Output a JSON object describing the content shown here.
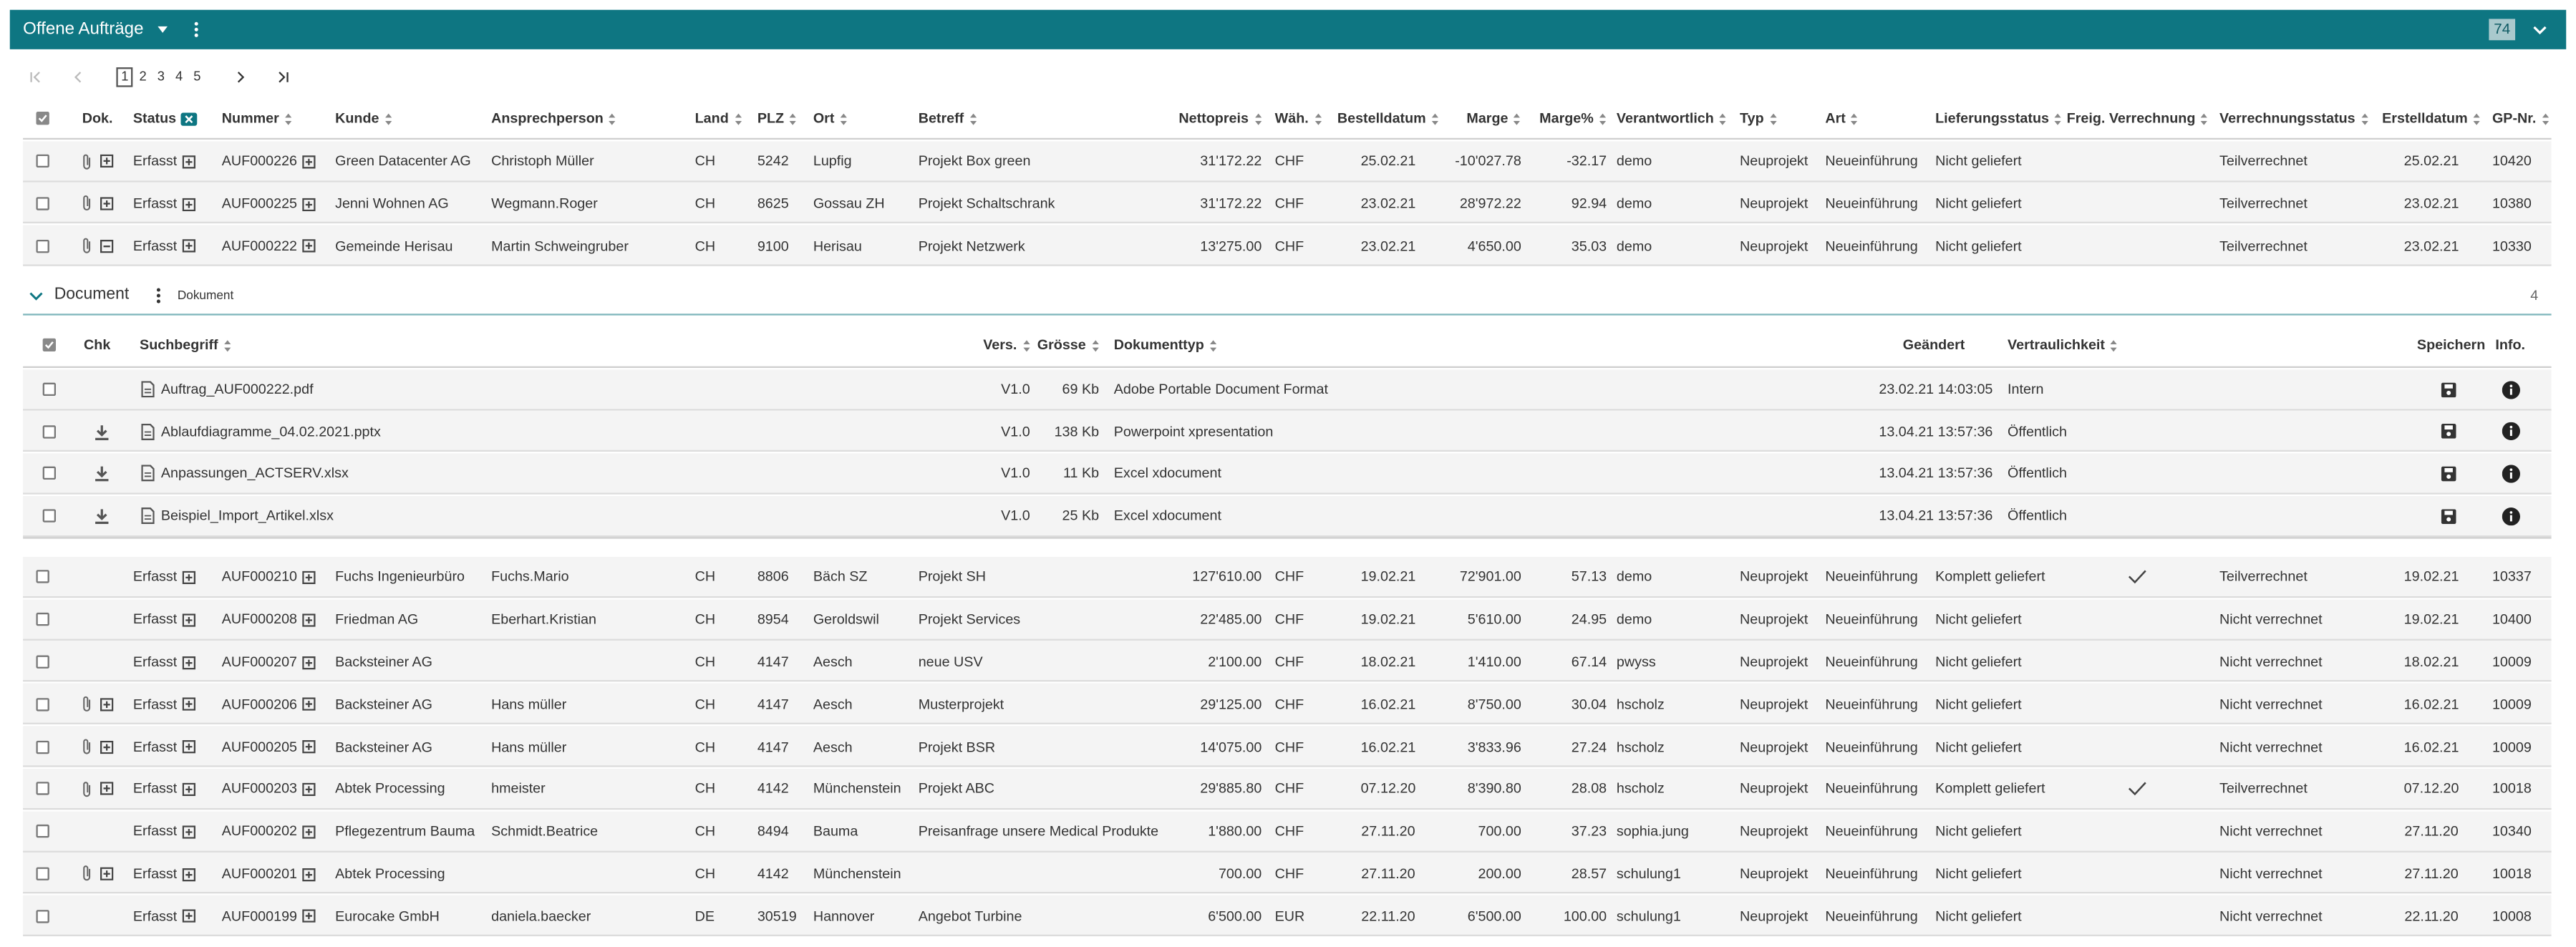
{
  "header": {
    "title": "Offene Aufträge",
    "count": "74"
  },
  "pagination": {
    "pages": [
      "1",
      "2",
      "3",
      "4",
      "5"
    ],
    "current": 0
  },
  "table": {
    "columns": [
      "Dok.",
      "Status",
      "Nummer",
      "Kunde",
      "Ansprechperson",
      "Land",
      "PLZ",
      "Ort",
      "Betreff",
      "Nettopreis",
      "Wäh.",
      "Bestelldatum",
      "Marge",
      "Marge%",
      "Verantwortlich",
      "Typ",
      "Art",
      "Lieferungsstatus",
      "Freig. Verrechnung",
      "Verrechnungsstatus",
      "Erstelldatum",
      "GP-Nr."
    ],
    "rows": [
      {
        "attachments": true,
        "expanded": false,
        "cells": [
          "Erfasst",
          "AUF000226",
          "Green Datacenter AG",
          "Christoph Müller",
          "CH",
          "5242",
          "Lupfig",
          "Projekt Box green",
          "31'172.22",
          "CHF",
          "25.02.21",
          "-10'027.78",
          "-32.17",
          "demo",
          "Neuprojekt",
          "Neueinführung",
          "Nicht geliefert",
          false,
          "Teilverrechnet",
          "25.02.21",
          "10420"
        ]
      },
      {
        "attachments": true,
        "expanded": false,
        "cells": [
          "Erfasst",
          "AUF000225",
          "Jenni Wohnen AG",
          "Wegmann.Roger",
          "CH",
          "8625",
          "Gossau ZH",
          "Projekt Schaltschrank",
          "31'172.22",
          "CHF",
          "23.02.21",
          "28'972.22",
          "92.94",
          "demo",
          "Neuprojekt",
          "Neueinführung",
          "Nicht geliefert",
          false,
          "Teilverrechnet",
          "23.02.21",
          "10380"
        ]
      },
      {
        "attachments": true,
        "expanded": true,
        "cells": [
          "Erfasst",
          "AUF000222",
          "Gemeinde Herisau",
          "Martin Schweingruber",
          "CH",
          "9100",
          "Herisau",
          "Projekt Netzwerk",
          "13'275.00",
          "CHF",
          "23.02.21",
          "4'650.00",
          "35.03",
          "demo",
          "Neuprojekt",
          "Neueinführung",
          "Nicht geliefert",
          false,
          "Teilverrechnet",
          "23.02.21",
          "10330"
        ]
      },
      {
        "attachments": false,
        "expanded": false,
        "cells": [
          "Erfasst",
          "AUF000210",
          "Fuchs Ingenieurbüro",
          "Fuchs.Mario",
          "CH",
          "8806",
          "Bäch SZ",
          "Projekt SH",
          "127'610.00",
          "CHF",
          "19.02.21",
          "72'901.00",
          "57.13",
          "demo",
          "Neuprojekt",
          "Neueinführung",
          "Komplett geliefert",
          true,
          "Teilverrechnet",
          "19.02.21",
          "10337"
        ]
      },
      {
        "attachments": false,
        "expanded": false,
        "cells": [
          "Erfasst",
          "AUF000208",
          "Friedman AG",
          "Eberhart.Kristian",
          "CH",
          "8954",
          "Geroldswil",
          "Projekt Services",
          "22'485.00",
          "CHF",
          "19.02.21",
          "5'610.00",
          "24.95",
          "demo",
          "Neuprojekt",
          "Neueinführung",
          "Nicht geliefert",
          false,
          "Nicht verrechnet",
          "19.02.21",
          "10400"
        ]
      },
      {
        "attachments": false,
        "expanded": false,
        "cells": [
          "Erfasst",
          "AUF000207",
          "Backsteiner AG",
          null,
          "CH",
          "4147",
          "Aesch",
          "neue USV",
          "2'100.00",
          "CHF",
          "18.02.21",
          "1'410.00",
          "67.14",
          "pwyss",
          "Neuprojekt",
          "Neueinführung",
          "Nicht geliefert",
          false,
          "Nicht verrechnet",
          "18.02.21",
          "10009"
        ]
      },
      {
        "attachments": true,
        "expanded": false,
        "cells": [
          "Erfasst",
          "AUF000206",
          "Backsteiner AG",
          "Hans müller",
          "CH",
          "4147",
          "Aesch",
          "Musterprojekt",
          "29'125.00",
          "CHF",
          "16.02.21",
          "8'750.00",
          "30.04",
          "hscholz",
          "Neuprojekt",
          "Neueinführung",
          "Nicht geliefert",
          false,
          "Nicht verrechnet",
          "16.02.21",
          "10009"
        ]
      },
      {
        "attachments": true,
        "expanded": false,
        "cells": [
          "Erfasst",
          "AUF000205",
          "Backsteiner AG",
          "Hans müller",
          "CH",
          "4147",
          "Aesch",
          "Projekt BSR",
          "14'075.00",
          "CHF",
          "16.02.21",
          "3'833.96",
          "27.24",
          "hscholz",
          "Neuprojekt",
          "Neueinführung",
          "Nicht geliefert",
          false,
          "Nicht verrechnet",
          "16.02.21",
          "10009"
        ]
      },
      {
        "attachments": true,
        "expanded": false,
        "cells": [
          "Erfasst",
          "AUF000203",
          "Abtek Processing",
          "hmeister",
          "CH",
          "4142",
          "Münchenstein",
          "Projekt ABC",
          "29'885.80",
          "CHF",
          "07.12.20",
          "8'390.80",
          "28.08",
          "hscholz",
          "Neuprojekt",
          "Neueinführung",
          "Komplett geliefert",
          true,
          "Teilverrechnet",
          "07.12.20",
          "10018"
        ]
      },
      {
        "attachments": false,
        "expanded": false,
        "cells": [
          "Erfasst",
          "AUF000202",
          "Pflegezentrum Bauma",
          "Schmidt.Beatrice",
          "CH",
          "8494",
          "Bauma",
          "Preisanfrage unsere Medical Produkte",
          "1'880.00",
          "CHF",
          "27.11.20",
          "700.00",
          "37.23",
          "sophia.jung",
          "Neuprojekt",
          "Neueinführung",
          "Nicht geliefert",
          false,
          "Nicht verrechnet",
          "27.11.20",
          "10340"
        ]
      },
      {
        "attachments": true,
        "expanded": false,
        "cells": [
          "Erfasst",
          "AUF000201",
          "Abtek Processing",
          null,
          "CH",
          "4142",
          "Münchenstein",
          null,
          "700.00",
          "CHF",
          "27.11.20",
          "200.00",
          "28.57",
          "schulung1",
          "Neuprojekt",
          "Neueinführung",
          "Nicht geliefert",
          false,
          "Nicht verrechnet",
          "27.11.20",
          "10018"
        ]
      },
      {
        "attachments": false,
        "expanded": false,
        "cells": [
          "Erfasst",
          "AUF000199",
          "Eurocake GmbH",
          "daniela.baecker",
          "DE",
          "30519",
          "Hannover",
          "Angebot Turbine",
          "6'500.00",
          "EUR",
          "22.11.20",
          "6'500.00",
          "100.00",
          "schulung1",
          "Neuprojekt",
          "Neueinführung",
          "Nicht geliefert",
          false,
          "Nicht verrechnet",
          "22.11.20",
          "10008"
        ]
      }
    ]
  },
  "documents": {
    "title": "Document",
    "subtitle": "Dokument",
    "count": "4",
    "columns": [
      "Chk",
      "Suchbegriff",
      "Vers.",
      "Grösse",
      "Dokumenttyp",
      "Geändert",
      "Vertraulichkeit",
      "Speichern",
      "Info."
    ],
    "rows": [
      {
        "download": false,
        "cells": [
          "Auftrag_AUF000222.pdf",
          "V1.0",
          "69 Kb",
          "Adobe Portable Document Format",
          "23.02.21 14:03:05",
          "Intern"
        ]
      },
      {
        "download": true,
        "cells": [
          "Ablaufdiagramme_04.02.2021.pptx",
          "V1.0",
          "138 Kb",
          "Powerpoint xpresentation",
          "13.04.21 13:57:36",
          "Öffentlich"
        ]
      },
      {
        "download": true,
        "cells": [
          "Anpassungen_ACTSERV.xlsx",
          "V1.0",
          "11 Kb",
          "Excel xdocument",
          "13.04.21 13:57:36",
          "Öffentlich"
        ]
      },
      {
        "download": true,
        "cells": [
          "Beispiel_Import_Artikel.xlsx",
          "V1.0",
          "25 Kb",
          "Excel xdocument",
          "13.04.21 13:57:36",
          "Öffentlich"
        ]
      }
    ]
  }
}
